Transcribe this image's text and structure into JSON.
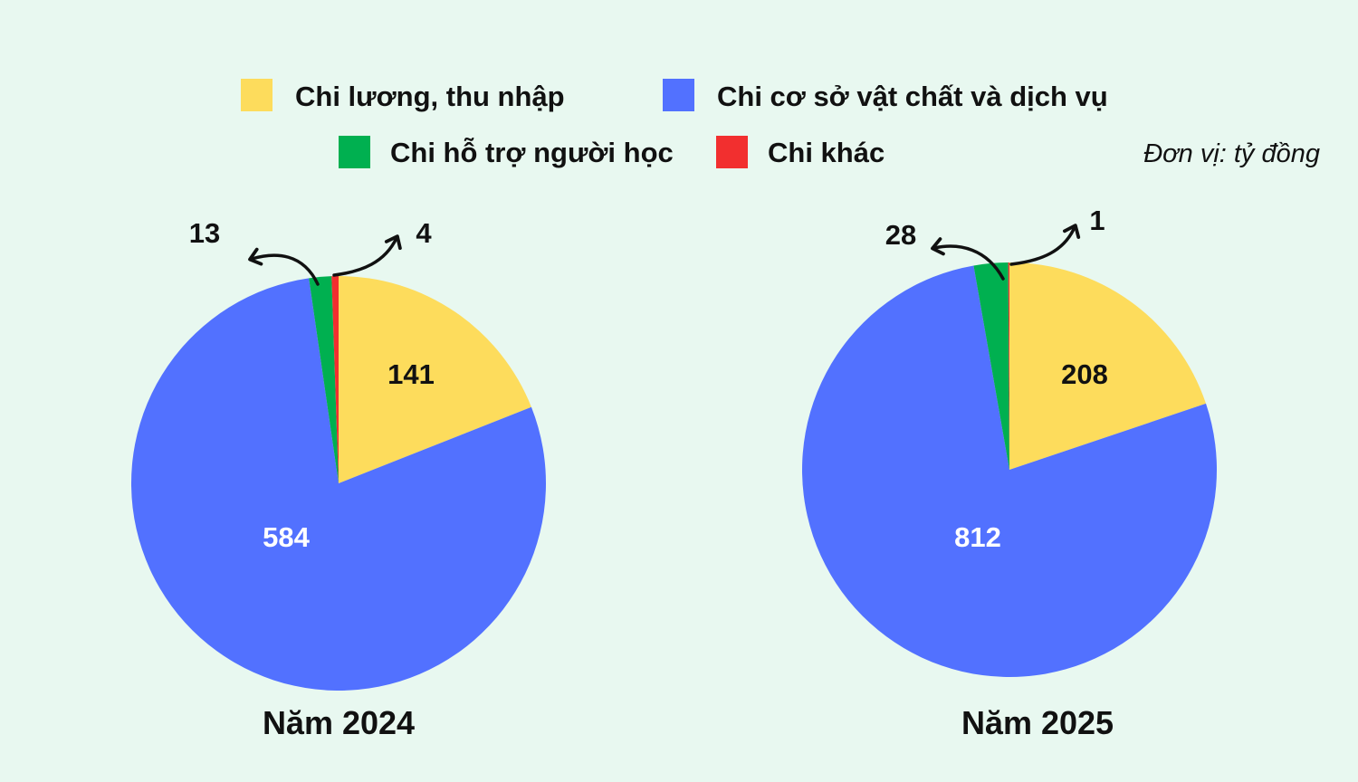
{
  "legend": [
    {
      "name": "Chi lương, thu nhập",
      "color": "#FDDC5C"
    },
    {
      "name": "Chi cơ sở vật chất và dịch vụ",
      "color": "#5271FF"
    },
    {
      "name": "Chi hỗ trợ người học",
      "color": "#00B050"
    },
    {
      "name": "Chi khác",
      "color": "#F22F2F"
    }
  ],
  "unit_label": "Đơn vị: tỷ đồng",
  "chart_data": [
    {
      "type": "pie",
      "title": "Năm 2024",
      "categories": [
        "Chi lương, thu nhập",
        "Chi cơ sở vật chất và dịch vụ",
        "Chi hỗ trợ người học",
        "Chi khác"
      ],
      "values": [
        141,
        584,
        13,
        4
      ],
      "labels": [
        "141",
        "584",
        "13",
        "4"
      ],
      "colors": [
        "#FDDC5C",
        "#5271FF",
        "#00B050",
        "#F22F2F"
      ],
      "start": "12 o'clock, clockwise"
    },
    {
      "type": "pie",
      "title": "Năm 2025",
      "categories": [
        "Chi lương, thu nhập",
        "Chi cơ sở vật chất và dịch vụ",
        "Chi hỗ trợ người học",
        "Chi khác"
      ],
      "values": [
        208,
        812,
        28,
        1
      ],
      "labels": [
        "208",
        "812",
        "28",
        "1"
      ],
      "colors": [
        "#FDDC5C",
        "#5271FF",
        "#00B050",
        "#F22F2F"
      ],
      "start": "12 o'clock, clockwise"
    }
  ]
}
